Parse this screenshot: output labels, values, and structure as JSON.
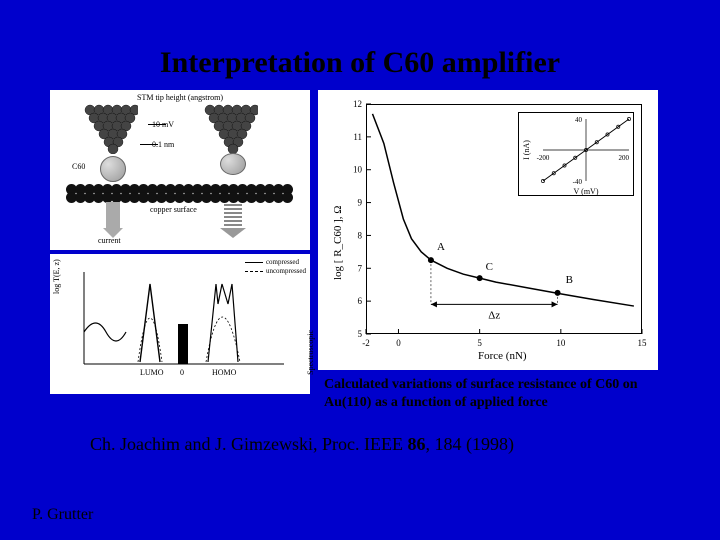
{
  "title": "Interpretation of C60 amplifier",
  "panel_a": {
    "top_label": "STM tip height (angstrom)",
    "voltage_label": "10 mV",
    "c60_label": "C60",
    "gap_label": "0.1 nm",
    "surface_label": "copper surface",
    "current_label": "current",
    "colors": {
      "atom_fill": "#444444",
      "surface_fill": "#111111",
      "bg": "#ffffff"
    }
  },
  "panel_b": {
    "legend": {
      "compressed": "compressed",
      "uncompressed": "uncompressed"
    },
    "lumo_label": "LUMO",
    "homo_label": "HOMO",
    "y_label": "log T(E, z)",
    "x_center": "0",
    "spectro_label": "Spectroscopic"
  },
  "chart": {
    "type": "line",
    "title": "",
    "x_label": "Force (nN)",
    "y_label": "log [ R_C60 ], Ω",
    "xlim": [
      -2,
      15
    ],
    "ylim": [
      5,
      12
    ],
    "xticks": [
      -2,
      0,
      5,
      10,
      15
    ],
    "yticks": [
      5,
      6,
      7,
      8,
      9,
      10,
      11,
      12
    ],
    "line_color": "#000000",
    "line_width": 1.5,
    "background_color": "#ffffff",
    "curve": [
      [
        -1.6,
        11.7
      ],
      [
        -0.9,
        10.8
      ],
      [
        -0.3,
        9.6
      ],
      [
        0.3,
        8.5
      ],
      [
        0.8,
        7.9
      ],
      [
        1.4,
        7.5
      ],
      [
        2.0,
        7.25
      ],
      [
        3.0,
        7.0
      ],
      [
        4.0,
        6.82
      ],
      [
        5.0,
        6.7
      ],
      [
        6.0,
        6.58
      ],
      [
        8.0,
        6.4
      ],
      [
        10.0,
        6.22
      ],
      [
        12.0,
        6.05
      ],
      [
        14.5,
        5.85
      ]
    ],
    "markers": {
      "A": [
        2.0,
        7.25
      ],
      "C": [
        5.0,
        6.7
      ],
      "B": [
        9.8,
        6.25
      ]
    },
    "delta_z_label": "Δz",
    "inset": {
      "x_label": "V (mV)",
      "y_label": "I (nA)",
      "xlim": [
        -200,
        200
      ],
      "ylim": [
        -40,
        40
      ],
      "xticks": [
        -200,
        200
      ],
      "yticks": [
        -40,
        40
      ],
      "series_color": "#000000",
      "points": [
        [
          -200,
          -40
        ],
        [
          -150,
          -30
        ],
        [
          -100,
          -20
        ],
        [
          -50,
          -10
        ],
        [
          0,
          0
        ],
        [
          50,
          10
        ],
        [
          100,
          20
        ],
        [
          150,
          30
        ],
        [
          200,
          40
        ]
      ]
    }
  },
  "caption": "Calculated variations of surface resistance of C60 on Au(110) as a function of applied  force",
  "citation": {
    "authors": "Ch. Joachim and J. Gimzewski, Proc. IEEE ",
    "volume": "86",
    "rest": ", 184 (1998)"
  },
  "footer": "P. Grutter"
}
